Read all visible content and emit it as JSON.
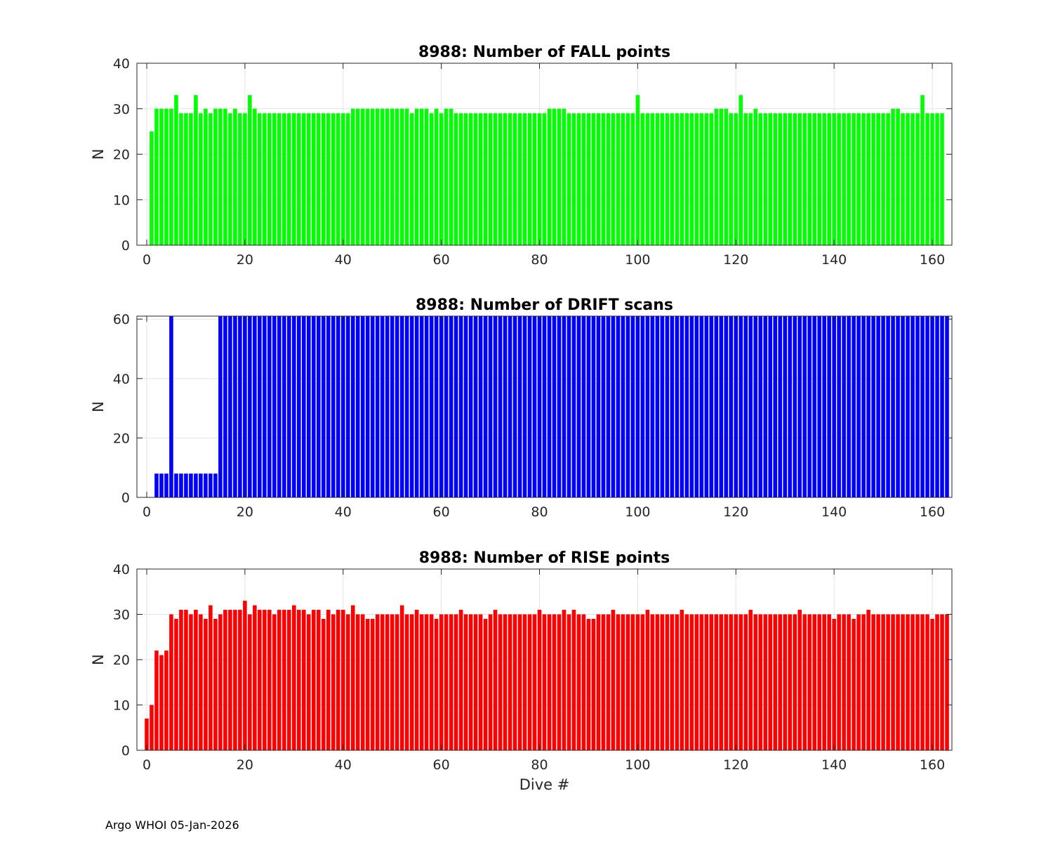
{
  "footer": "Argo WHOI 05-Jan-2026",
  "chart_data": [
    {
      "type": "bar",
      "title": "8988: Number of FALL points",
      "xlabel": "",
      "ylabel": "N",
      "color": "#00ff00",
      "xlim": [
        -2,
        164
      ],
      "ylim": [
        0,
        40
      ],
      "xticks": [
        0,
        20,
        40,
        60,
        80,
        100,
        120,
        140,
        160
      ],
      "yticks": [
        0,
        10,
        20,
        30,
        40
      ],
      "grid": true,
      "x_start": 0,
      "values": [
        0,
        25,
        30,
        30,
        30,
        30,
        33,
        29,
        29,
        29,
        33,
        29,
        30,
        29,
        30,
        30,
        30,
        29,
        30,
        29,
        29,
        33,
        30,
        29,
        29,
        29,
        29,
        29,
        29,
        29,
        29,
        29,
        29,
        29,
        29,
        29,
        29,
        29,
        29,
        29,
        29,
        29,
        30,
        30,
        30,
        30,
        30,
        30,
        30,
        30,
        30,
        30,
        30,
        30,
        29,
        30,
        30,
        30,
        29,
        30,
        29,
        30,
        30,
        29,
        29,
        29,
        29,
        29,
        29,
        29,
        29,
        29,
        29,
        29,
        29,
        29,
        29,
        29,
        29,
        29,
        29,
        29,
        30,
        30,
        30,
        30,
        29,
        29,
        29,
        29,
        29,
        29,
        29,
        29,
        29,
        29,
        29,
        29,
        29,
        29,
        33,
        29,
        29,
        29,
        29,
        29,
        29,
        29,
        29,
        29,
        29,
        29,
        29,
        29,
        29,
        29,
        30,
        30,
        30,
        29,
        29,
        33,
        29,
        29,
        30,
        29,
        29,
        29,
        29,
        29,
        29,
        29,
        29,
        29,
        29,
        29,
        29,
        29,
        29,
        29,
        29,
        29,
        29,
        29,
        29,
        29,
        29,
        29,
        29,
        29,
        29,
        29,
        30,
        30,
        29,
        29,
        29,
        29,
        33,
        29,
        29,
        29,
        29
      ]
    },
    {
      "type": "bar",
      "title": "8988: Number of DRIFT scans",
      "xlabel": "",
      "ylabel": "N",
      "color": "#0000ff",
      "xlim": [
        -2,
        164
      ],
      "ylim": [
        0,
        61
      ],
      "xticks": [
        0,
        20,
        40,
        60,
        80,
        100,
        120,
        140,
        160
      ],
      "yticks": [
        0,
        20,
        40,
        60
      ],
      "grid": true,
      "x_start": 0,
      "values": [
        0,
        0,
        8,
        8,
        8,
        61,
        8,
        8,
        8,
        8,
        8,
        8,
        8,
        8,
        8,
        61,
        61,
        61,
        61,
        61,
        61,
        61,
        61,
        61,
        61,
        61,
        61,
        61,
        61,
        61,
        61,
        61,
        61,
        61,
        61,
        61,
        61,
        61,
        61,
        61,
        61,
        61,
        61,
        61,
        61,
        61,
        61,
        61,
        61,
        61,
        61,
        61,
        61,
        61,
        61,
        61,
        61,
        61,
        61,
        61,
        61,
        61,
        61,
        61,
        61,
        61,
        61,
        61,
        61,
        61,
        61,
        61,
        61,
        61,
        61,
        61,
        61,
        61,
        61,
        61,
        61,
        61,
        61,
        61,
        61,
        61,
        61,
        61,
        61,
        61,
        61,
        61,
        61,
        61,
        61,
        61,
        61,
        61,
        61,
        61,
        61,
        61,
        61,
        61,
        61,
        61,
        61,
        61,
        61,
        61,
        61,
        61,
        61,
        61,
        61,
        61,
        61,
        61,
        61,
        61,
        61,
        61,
        61,
        61,
        61,
        61,
        61,
        61,
        61,
        61,
        61,
        61,
        61,
        61,
        61,
        61,
        61,
        61,
        61,
        61,
        61,
        61,
        61,
        61,
        61,
        61,
        61,
        61,
        61,
        61,
        61,
        61,
        61,
        61,
        61,
        61,
        61,
        61,
        61,
        61,
        61,
        61,
        61,
        61
      ]
    },
    {
      "type": "bar",
      "title": "8988: Number of RISE points",
      "xlabel": "Dive #",
      "ylabel": "N",
      "color": "#ff0000",
      "xlim": [
        -2,
        164
      ],
      "ylim": [
        0,
        40
      ],
      "xticks": [
        0,
        20,
        40,
        60,
        80,
        100,
        120,
        140,
        160
      ],
      "yticks": [
        0,
        10,
        20,
        30,
        40
      ],
      "grid": true,
      "x_start": 0,
      "values": [
        7,
        10,
        22,
        21,
        22,
        30,
        29,
        31,
        31,
        30,
        31,
        30,
        29,
        32,
        29,
        30,
        31,
        31,
        31,
        31,
        33,
        30,
        32,
        31,
        31,
        31,
        30,
        31,
        31,
        31,
        32,
        31,
        31,
        30,
        31,
        31,
        29,
        31,
        30,
        31,
        31,
        30,
        32,
        30,
        30,
        29,
        29,
        30,
        30,
        30,
        30,
        30,
        32,
        30,
        30,
        31,
        30,
        30,
        30,
        29,
        30,
        30,
        30,
        30,
        31,
        30,
        30,
        30,
        30,
        29,
        30,
        31,
        30,
        30,
        30,
        30,
        30,
        30,
        30,
        30,
        31,
        30,
        30,
        30,
        30,
        31,
        30,
        31,
        30,
        30,
        29,
        29,
        30,
        30,
        30,
        31,
        30,
        30,
        30,
        30,
        30,
        30,
        31,
        30,
        30,
        30,
        30,
        30,
        30,
        31,
        30,
        30,
        30,
        30,
        30,
        30,
        30,
        30,
        30,
        30,
        30,
        30,
        30,
        31,
        30,
        30,
        30,
        30,
        30,
        30,
        30,
        30,
        30,
        31,
        30,
        30,
        30,
        30,
        30,
        30,
        29,
        30,
        30,
        30,
        29,
        30,
        30,
        31,
        30,
        30,
        30,
        30,
        30,
        30,
        30,
        30,
        30,
        30,
        30,
        30,
        29,
        30,
        30,
        30
      ]
    }
  ]
}
